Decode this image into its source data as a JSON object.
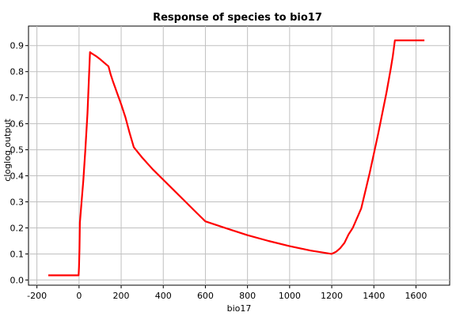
{
  "chart_data": {
    "type": "line",
    "title": "Response of species to bio17",
    "xlabel": "bio17",
    "ylabel": "cloglog output",
    "xlim": [
      -240,
      1760
    ],
    "ylim": [
      -0.02,
      0.975
    ],
    "xticks": [
      -200,
      0,
      200,
      400,
      600,
      800,
      1000,
      1200,
      1400,
      1600
    ],
    "yticks": [
      0.0,
      0.1,
      0.2,
      0.3,
      0.4,
      0.5,
      0.6,
      0.7,
      0.8,
      0.9
    ],
    "grid": true,
    "line_color": "#ff0000",
    "series": [
      {
        "x": [
          -146,
          -2,
          0,
          2,
          4,
          10,
          20,
          30,
          40,
          52,
          60,
          80,
          100,
          140,
          150,
          160,
          180,
          200,
          220,
          240,
          260,
          280,
          300,
          350,
          400,
          450,
          500,
          550,
          600,
          700,
          800,
          900,
          1000,
          1100,
          1200,
          1220,
          1240,
          1260,
          1280,
          1300,
          1340,
          1380,
          1420,
          1460,
          1480,
          1490,
          1500,
          1640
        ],
        "y": [
          0.018,
          0.018,
          0.05,
          0.12,
          0.22,
          0.28,
          0.38,
          0.5,
          0.64,
          0.875,
          0.87,
          0.86,
          0.848,
          0.82,
          0.79,
          0.765,
          0.72,
          0.675,
          0.625,
          0.565,
          0.51,
          0.49,
          0.47,
          0.425,
          0.385,
          0.345,
          0.305,
          0.265,
          0.225,
          0.198,
          0.172,
          0.15,
          0.13,
          0.113,
          0.1,
          0.108,
          0.122,
          0.142,
          0.175,
          0.2,
          0.275,
          0.41,
          0.56,
          0.72,
          0.81,
          0.86,
          0.92,
          0.92
        ]
      }
    ]
  }
}
